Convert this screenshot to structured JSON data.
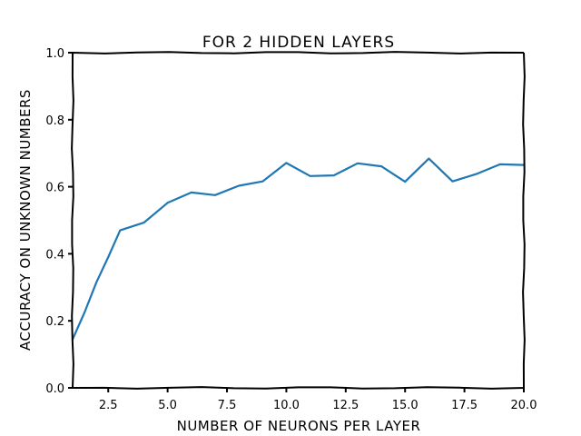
{
  "chart_data": {
    "type": "line",
    "title": "FOR 2 HIDDEN LAYERS",
    "xlabel": "NUMBER OF NEURONS PER LAYER",
    "ylabel": "ACCURACY ON UNKNOWN NUMBERS",
    "xlim": [
      1,
      20
    ],
    "ylim": [
      0.0,
      1.0
    ],
    "xticks": [
      2.5,
      5.0,
      7.5,
      10.0,
      12.5,
      15.0,
      17.5,
      20.0
    ],
    "xtick_labels": [
      "2.5",
      "5.0",
      "7.5",
      "10.0",
      "12.5",
      "15.0",
      "17.5",
      "20.0"
    ],
    "yticks": [
      0.0,
      0.2,
      0.4,
      0.6,
      0.8,
      1.0
    ],
    "ytick_labels": [
      "0.0",
      "0.2",
      "0.4",
      "0.6",
      "0.8",
      "1.0"
    ],
    "grid": false,
    "series_color": "#1f77b4",
    "x": [
      1,
      1.5,
      2,
      2.5,
      3,
      4,
      5,
      6,
      7,
      8,
      9,
      10,
      11,
      12,
      13,
      14,
      15,
      16,
      17,
      18,
      19,
      20
    ],
    "y": [
      0.145,
      0.225,
      0.315,
      0.39,
      0.47,
      0.493,
      0.552,
      0.583,
      0.575,
      0.603,
      0.616,
      0.671,
      0.632,
      0.634,
      0.67,
      0.661,
      0.615,
      0.684,
      0.616,
      0.638,
      0.667,
      0.665
    ]
  }
}
